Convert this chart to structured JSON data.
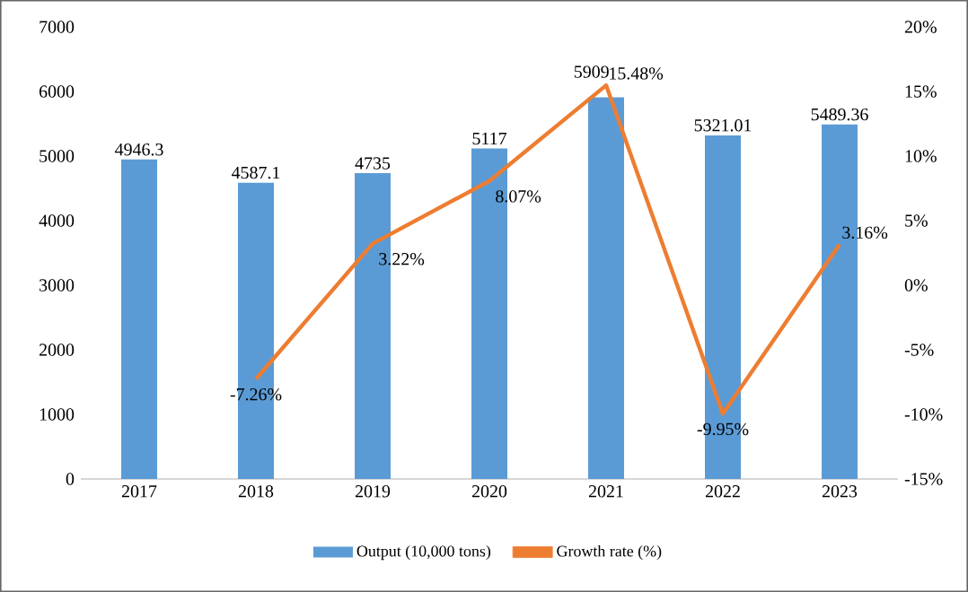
{
  "chart_data": {
    "type": "bar",
    "categories": [
      "2017",
      "2018",
      "2019",
      "2020",
      "2021",
      "2022",
      "2023"
    ],
    "series": [
      {
        "name": "Output (10,000 tons)",
        "color": "#5b9bd5",
        "values": [
          4946.3,
          4587.1,
          4735,
          5117,
          5909,
          5321.01,
          5489.36
        ]
      },
      {
        "name": "Growth rate (%)",
        "type": "line",
        "axis": "y2",
        "color": "#ed7d31",
        "values": [
          null,
          -7.26,
          3.22,
          8.07,
          15.48,
          -9.95,
          3.16
        ],
        "value_labels": [
          null,
          "-7.26%",
          "3.22%",
          "8.07%",
          "15.48%",
          "-9.95%",
          "3.16%"
        ]
      }
    ],
    "ylim": [
      0,
      7000
    ],
    "yticks": [
      0,
      1000,
      2000,
      3000,
      4000,
      5000,
      6000,
      7000
    ],
    "y2lim": [
      -15,
      20
    ],
    "y2ticks": [
      {
        "value": -15,
        "label": "-15%"
      },
      {
        "value": -10,
        "label": "-10%"
      },
      {
        "value": -5,
        "label": "-5%"
      },
      {
        "value": 0,
        "label": "0%"
      },
      {
        "value": 5,
        "label": "5%"
      },
      {
        "value": 10,
        "label": "10%"
      },
      {
        "value": 15,
        "label": "15%"
      },
      {
        "value": 20,
        "label": "20%"
      }
    ],
    "data_labels": true,
    "legend": "bottom"
  }
}
